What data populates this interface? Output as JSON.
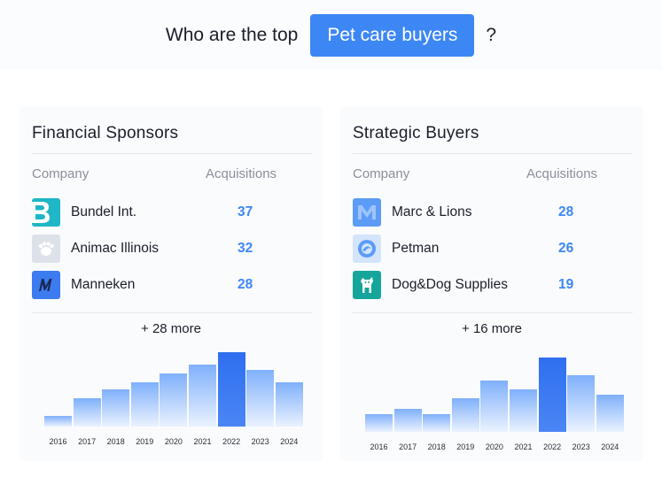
{
  "header": {
    "prefix": "Who are the top",
    "category_chip": "Pet care buyers",
    "suffix": "?"
  },
  "panels": [
    {
      "title": "Financial Sponsors",
      "col_company": "Company",
      "col_acquisitions": "Acquisitions",
      "rows": [
        {
          "company": "Bundel Int.",
          "acquisitions": "37",
          "logo": "bundel-logo"
        },
        {
          "company": "Animac Illinois",
          "acquisitions": "32",
          "logo": "paw-logo"
        },
        {
          "company": "Manneken",
          "acquisitions": "28",
          "logo": "m-italic-logo"
        }
      ],
      "more": "+ 28 more"
    },
    {
      "title": "Strategic Buyers",
      "col_company": "Company",
      "col_acquisitions": "Acquisitions",
      "rows": [
        {
          "company": "Marc & Lions",
          "acquisitions": "28",
          "logo": "m-block-logo"
        },
        {
          "company": "Petman",
          "acquisitions": "26",
          "logo": "round-logo"
        },
        {
          "company": "Dog&Dog Supplies",
          "acquisitions": "19",
          "logo": "dog-logo"
        }
      ],
      "more": "+ 16 more"
    }
  ],
  "chart_data": [
    {
      "type": "bar",
      "categories": [
        "2016",
        "2017",
        "2018",
        "2019",
        "2020",
        "2021",
        "2022",
        "2023",
        "2024"
      ],
      "values": [
        1.2,
        3.2,
        4.2,
        5.0,
        6.0,
        7.0,
        8.4,
        6.4,
        5.0
      ],
      "highlight": "2022",
      "ylim": [
        0,
        8.4
      ]
    },
    {
      "type": "bar",
      "categories": [
        "2016",
        "2017",
        "2018",
        "2019",
        "2020",
        "2021",
        "2022",
        "2023",
        "2024"
      ],
      "values": [
        2.0,
        2.6,
        2.0,
        3.8,
        5.8,
        4.8,
        8.4,
        6.4,
        4.2
      ],
      "highlight": "2022",
      "ylim": [
        0,
        8.4
      ]
    }
  ],
  "colors": {
    "accent": "#3d87f5",
    "highlight_bar": "#2f6ff0",
    "bar_top": "#7fb0fb",
    "bar_bottom": "#ffffff"
  }
}
